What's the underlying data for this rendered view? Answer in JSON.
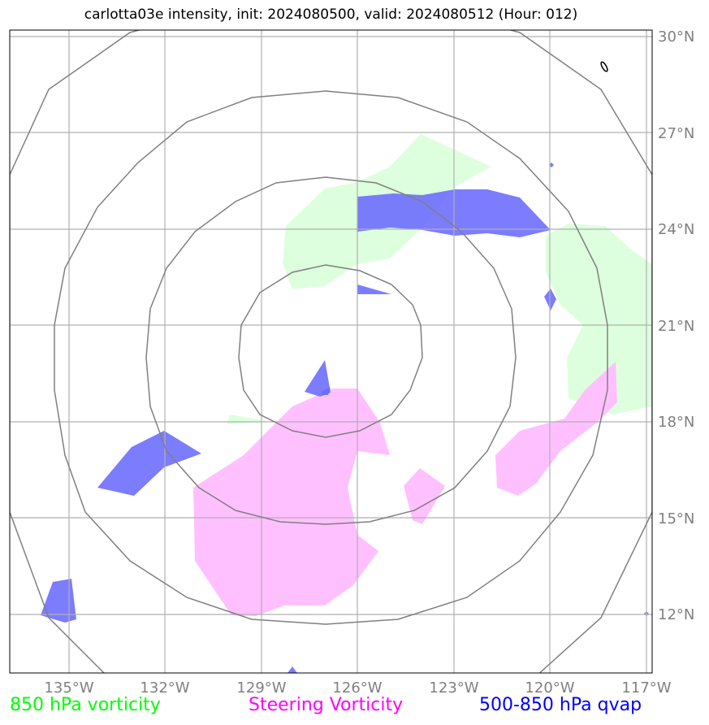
{
  "title": "carlotta03e intensity, init: 2024080500, valid: 2024080512 (Hour: 012)",
  "lat_labels": [
    "30°N",
    "27°N",
    "24°N",
    "21°N",
    "18°N",
    "15°N",
    "12°N"
  ],
  "lon_labels": [
    "135°W",
    "132°W",
    "129°W",
    "126°W",
    "123°W",
    "120°W",
    "117°W"
  ],
  "legend": [
    {
      "label": "850 hPa vorticity",
      "color": "#00ff00"
    },
    {
      "label": "Steering Vorticity",
      "color": "#ff00ff"
    },
    {
      "label": "500-850 hPa qvap",
      "color": "#0000ff"
    }
  ],
  "colors": {
    "vorticity_850_fill": "#ddffdd",
    "steering_vorticity_fill": "#ffc0ff",
    "qvap_fill": "#8080ff",
    "range_rings": "#808080",
    "gridlines": "#b0b0b0"
  }
}
